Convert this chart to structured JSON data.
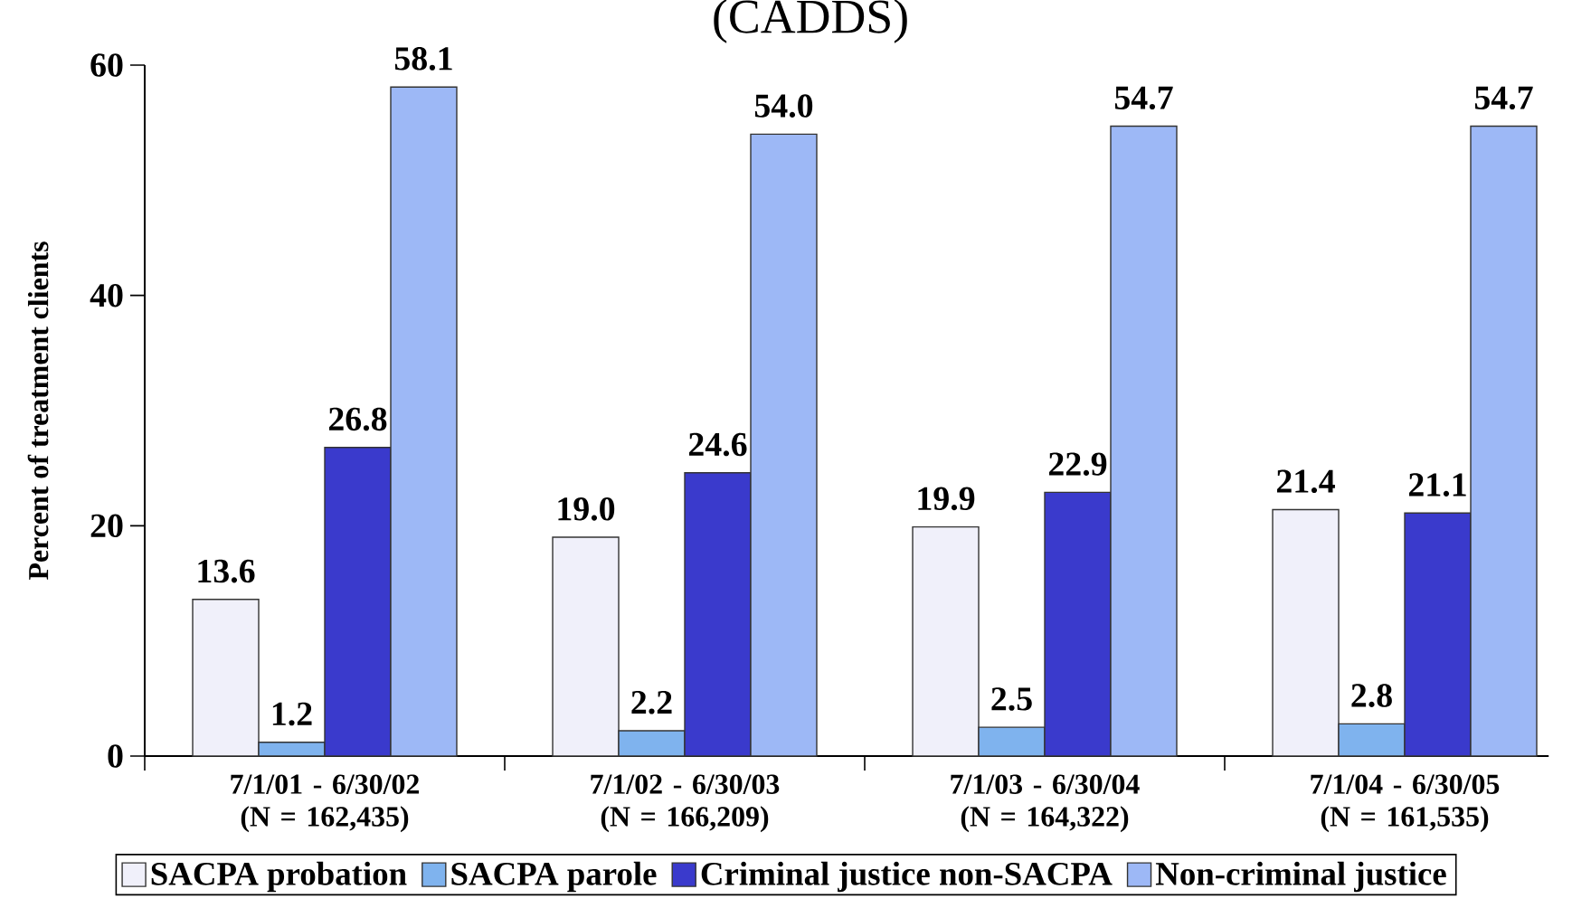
{
  "chart_data": {
    "type": "bar",
    "title": "(CADDS)",
    "ylabel": "Percent of treatment clients",
    "categories": [
      "7/1/01 - 6/30/02 (N = 162,435)",
      "7/1/02 - 6/30/03 (N = 166,209)",
      "7/1/03 - 6/30/04 (N = 164,322)",
      "7/1/04 - 6/30/05 (N = 161,535)"
    ],
    "series": [
      {
        "name": "SACPA probation",
        "color": "#f0f0fa",
        "values": [
          13.6,
          19.0,
          19.9,
          21.4
        ],
        "value_labels": [
          "13.6",
          "19.0",
          "19.9",
          "21.4"
        ]
      },
      {
        "name": "SACPA parole",
        "color": "#7fb3ee",
        "values": [
          1.2,
          2.2,
          2.5,
          2.8
        ],
        "value_labels": [
          "1.2",
          "2.2",
          "2.5",
          "2.8"
        ]
      },
      {
        "name": "Criminal justice non-SACPA",
        "color": "#3a3acc",
        "values": [
          26.8,
          24.6,
          22.9,
          21.1
        ],
        "value_labels": [
          "26.8",
          "24.6",
          "22.9",
          "21.1"
        ]
      },
      {
        "name": "Non-criminal justice",
        "color": "#9db8f6",
        "values": [
          58.1,
          54.0,
          54.7,
          54.7
        ],
        "value_labels": [
          "58.1",
          "54.0",
          "54.7",
          "54.7"
        ]
      }
    ],
    "ylim": [
      0,
      60
    ],
    "yticks": [
      0,
      20,
      40,
      60
    ],
    "legend": "bottom"
  }
}
